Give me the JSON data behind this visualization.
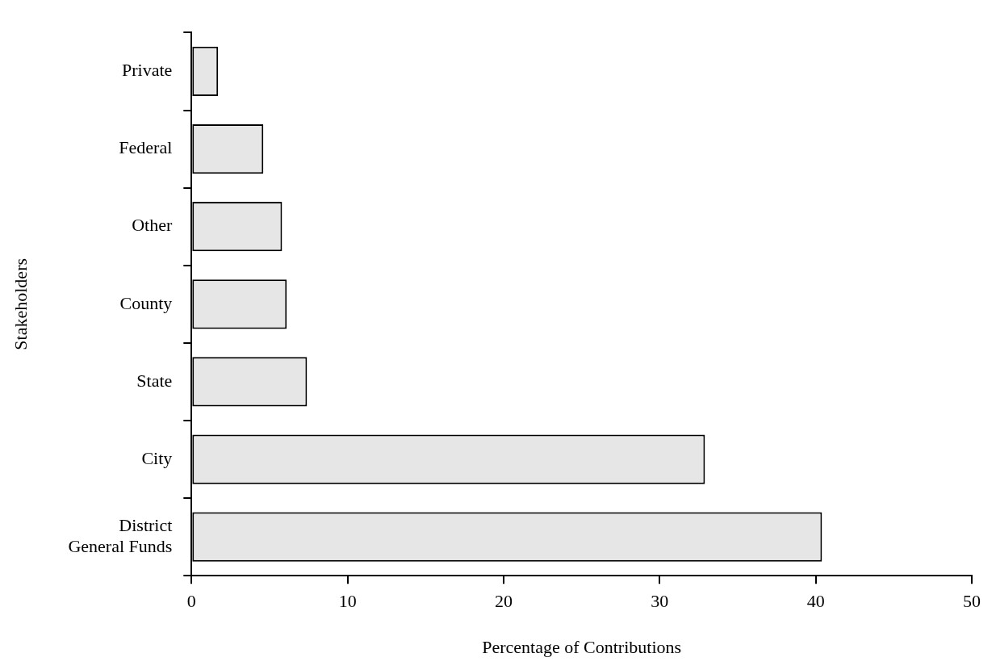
{
  "chart_data": {
    "type": "bar",
    "orientation": "horizontal",
    "categories": [
      "Private",
      "Federal",
      "Other",
      "County",
      "State",
      "City",
      "District\nGeneral Funds"
    ],
    "values": [
      1.7,
      4.6,
      5.8,
      6.1,
      7.4,
      32.9,
      40.4
    ],
    "color": "#e6e6e6",
    "xlabel": "Percentage of Contributions",
    "ylabel": "Stakeholders",
    "xlim": [
      0,
      50
    ],
    "xticks": [
      0,
      10,
      20,
      30,
      40,
      50
    ],
    "grid": false,
    "legend": false
  }
}
